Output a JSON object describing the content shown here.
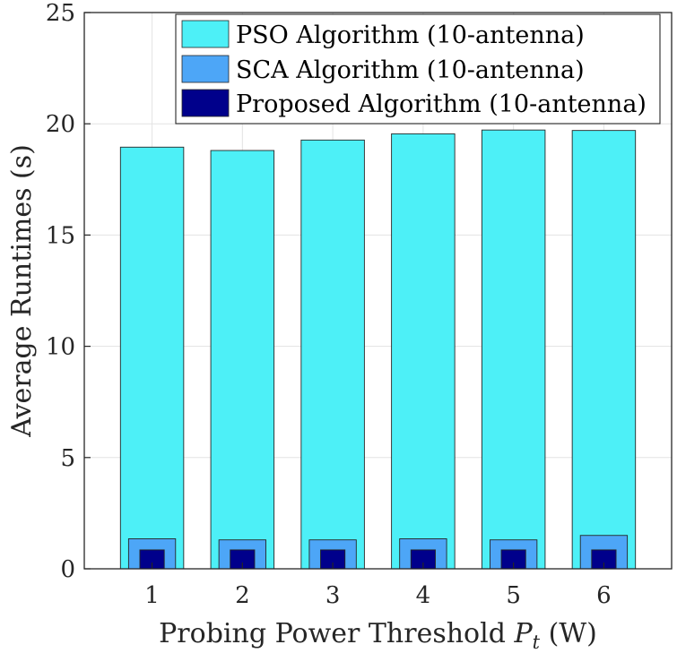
{
  "chart_data": {
    "type": "bar",
    "title": "",
    "categories": [
      "1",
      "2",
      "3",
      "4",
      "5",
      "6"
    ],
    "xlabel": {
      "prefix": "Probing Power Threshold ",
      "symbol": "P",
      "subscript": "t",
      "suffix": " (W)"
    },
    "ylabel": "Average Runtimes (s)",
    "ylim": [
      0,
      25
    ],
    "yticks": [
      "0",
      "5",
      "10",
      "15",
      "20",
      "25"
    ],
    "grid": true,
    "legend_position": "top-right",
    "series": [
      {
        "name": "PSO Algorithm (10-antenna)",
        "color": "#4DF0F7",
        "values": [
          18.95,
          18.8,
          19.27,
          19.55,
          19.72,
          19.7
        ]
      },
      {
        "name": "SCA Algorithm (10-antenna)",
        "color": "#4DA6F7",
        "values": [
          1.35,
          1.3,
          1.3,
          1.35,
          1.3,
          1.5
        ]
      },
      {
        "name": "Proposed Algorithm (10-antenna)",
        "color": "#00008B",
        "values": [
          0.85,
          0.85,
          0.85,
          0.85,
          0.85,
          0.85
        ]
      }
    ]
  }
}
